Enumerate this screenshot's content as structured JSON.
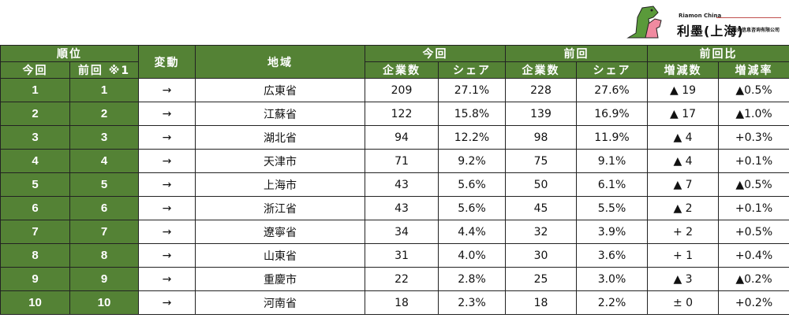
{
  "logo": {
    "en": "Riamon China",
    "cn": "利墨(上海)",
    "sub": "商务信息咨询有限公司"
  },
  "header": {
    "rank": "順位",
    "current": "今回",
    "previous": "前回 ※1",
    "change": "変動",
    "region": "地域",
    "this_time": "今回",
    "last_time": "前回",
    "compare": "前回比",
    "companies": "企業数",
    "share": "シェア",
    "diff": "増減数",
    "rate": "増減率"
  },
  "rows": [
    {
      "cur": "1",
      "prev": "1",
      "chg": "→",
      "region": "広東省",
      "n": "209",
      "s": "27.1%",
      "pn": "228",
      "ps": "27.6%",
      "d": "▲ 19",
      "r": "▲0.5%"
    },
    {
      "cur": "2",
      "prev": "2",
      "chg": "→",
      "region": "江蘇省",
      "n": "122",
      "s": "15.8%",
      "pn": "139",
      "ps": "16.9%",
      "d": "▲ 17",
      "r": "▲1.0%"
    },
    {
      "cur": "3",
      "prev": "3",
      "chg": "→",
      "region": "湖北省",
      "n": "94",
      "s": "12.2%",
      "pn": "98",
      "ps": "11.9%",
      "d": "▲ 4",
      "r": "+0.3%"
    },
    {
      "cur": "4",
      "prev": "4",
      "chg": "→",
      "region": "天津市",
      "n": "71",
      "s": "9.2%",
      "pn": "75",
      "ps": "9.1%",
      "d": "▲ 4",
      "r": "+0.1%"
    },
    {
      "cur": "5",
      "prev": "5",
      "chg": "→",
      "region": "上海市",
      "n": "43",
      "s": "5.6%",
      "pn": "50",
      "ps": "6.1%",
      "d": "▲ 7",
      "r": "▲0.5%"
    },
    {
      "cur": "6",
      "prev": "6",
      "chg": "→",
      "region": "浙江省",
      "n": "43",
      "s": "5.6%",
      "pn": "45",
      "ps": "5.5%",
      "d": "▲ 2",
      "r": "+0.1%"
    },
    {
      "cur": "7",
      "prev": "7",
      "chg": "→",
      "region": "遼寧省",
      "n": "34",
      "s": "4.4%",
      "pn": "32",
      "ps": "3.9%",
      "d": "+ 2",
      "r": "+0.5%"
    },
    {
      "cur": "8",
      "prev": "8",
      "chg": "→",
      "region": "山東省",
      "n": "31",
      "s": "4.0%",
      "pn": "30",
      "ps": "3.6%",
      "d": "+ 1",
      "r": "+0.4%"
    },
    {
      "cur": "9",
      "prev": "9",
      "chg": "→",
      "region": "重慶市",
      "n": "22",
      "s": "2.8%",
      "pn": "25",
      "ps": "3.0%",
      "d": "▲ 3",
      "r": "▲0.2%"
    },
    {
      "cur": "10",
      "prev": "10",
      "chg": "→",
      "region": "河南省",
      "n": "18",
      "s": "2.3%",
      "pn": "18",
      "ps": "2.2%",
      "d": "± 0",
      "r": "+0.2%"
    }
  ],
  "colors": {
    "header_green": "#548235"
  }
}
